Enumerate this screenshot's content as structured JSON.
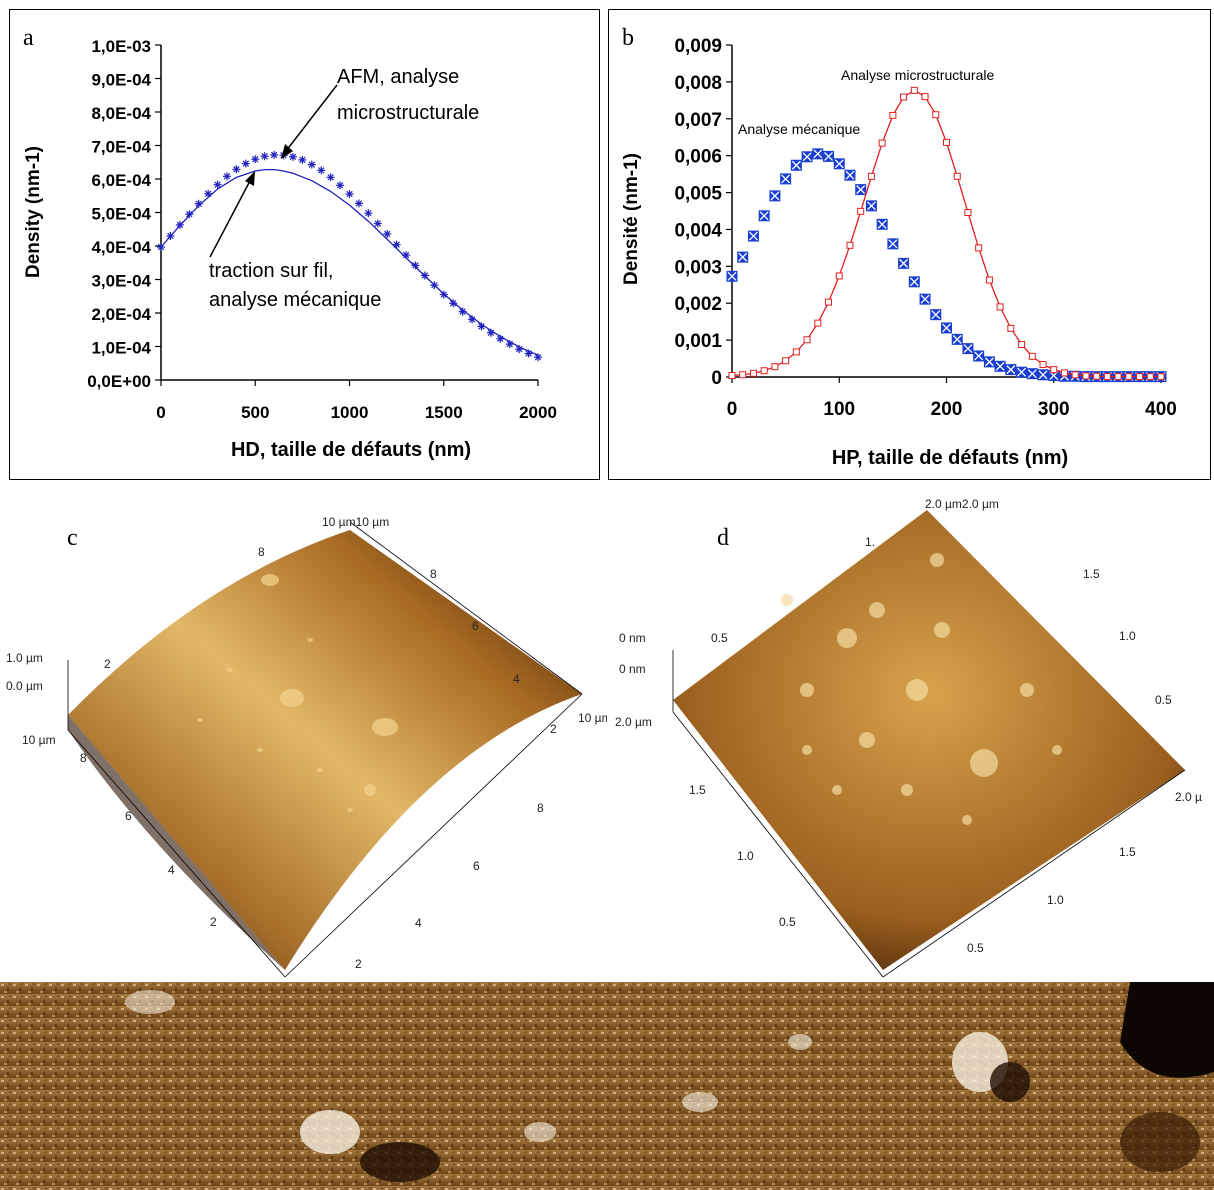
{
  "chart_data": [
    {
      "panel": "a",
      "type": "scatter",
      "xlabel": "HD,  taille de défauts (nm)",
      "ylabel": "Density (nm-1)",
      "xlim": [
        0,
        2000
      ],
      "ylim": [
        0,
        0.001
      ],
      "x_ticks": [
        "0",
        "500",
        "1000",
        "1500",
        "2000"
      ],
      "y_ticks": [
        "0,0E+00",
        "1,0E-04",
        "2,0E-04",
        "3,0E-04",
        "4,0E-04",
        "5,0E-04",
        "6,0E-04",
        "7,0E-04",
        "8,0E-04",
        "9,0E-04",
        "1,0E-03"
      ],
      "grid": false,
      "annotations": [
        {
          "lines": [
            "AFM, analyse",
            "microstructurale"
          ]
        },
        {
          "lines": [
            "traction sur fil,",
            "analyse mécanique"
          ]
        }
      ],
      "series": [
        {
          "marker": "asterisk",
          "color": "#2020c0",
          "x": [
            0,
            50,
            100,
            150,
            200,
            250,
            300,
            350,
            400,
            450,
            500,
            550,
            600,
            650,
            700,
            750,
            800,
            850,
            900,
            950,
            1000,
            1050,
            1100,
            1150,
            1200,
            1250,
            1300,
            1350,
            1400,
            1450,
            1500,
            1550,
            1600,
            1650,
            1700,
            1750,
            1800,
            1850,
            1900,
            1950,
            2000
          ],
          "y": [
            0.000397,
            0.00043,
            0.000463,
            0.000495,
            0.000526,
            0.000556,
            0.000583,
            0.000608,
            0.000629,
            0.000646,
            0.000659,
            0.000668,
            0.000672,
            0.000671,
            0.000666,
            0.000657,
            0.000643,
            0.000626,
            0.000605,
            0.000581,
            0.000555,
            0.000527,
            0.000498,
            0.000467,
            0.000436,
            0.000404,
            0.000373,
            0.000342,
            0.000312,
            0.000283,
            0.000255,
            0.000229,
            0.000204,
            0.000181,
            0.00016,
            0.000141,
            0.000123,
            0.000107,
            9.2e-05,
            7.9e-05,
            6.8e-05
          ]
        },
        {
          "marker": "line",
          "color": "#2020c0",
          "x": [
            0,
            100,
            200,
            300,
            400,
            500,
            550,
            600,
            650,
            700,
            800,
            900,
            1000,
            1100,
            1200,
            1300,
            1400,
            1500,
            1600,
            1700,
            1800,
            1900,
            2000
          ],
          "y": [
            0.000397,
            0.000461,
            0.00052,
            0.00057,
            0.000605,
            0.000624,
            0.000628,
            0.000628,
            0.000624,
            0.000617,
            0.000595,
            0.000563,
            0.000522,
            0.000474,
            0.00042,
            0.000365,
            0.00031,
            0.000257,
            0.000209,
            0.000166,
            0.00013,
            9.9e-05,
            7.4e-05
          ]
        }
      ]
    },
    {
      "panel": "b",
      "type": "scatter",
      "xlabel": "HP, taille de défauts (nm)",
      "ylabel": "Densité (nm-1)",
      "xlim": [
        0,
        400
      ],
      "ylim": [
        0,
        0.009
      ],
      "x_ticks": [
        "0",
        "100",
        "200",
        "300",
        "400"
      ],
      "y_ticks": [
        "0",
        "0,001",
        "0,002",
        "0,003",
        "0,004",
        "0,005",
        "0,006",
        "0,007",
        "0,008",
        "0,009"
      ],
      "grid": false,
      "series": [
        {
          "name": "Analyse mécanique",
          "marker": "square-x",
          "color": "#1a3fd0",
          "x": [
            0,
            10,
            20,
            30,
            40,
            50,
            60,
            70,
            80,
            90,
            100,
            110,
            120,
            130,
            140,
            150,
            160,
            170,
            180,
            190,
            200,
            210,
            220,
            230,
            240,
            250,
            260,
            270,
            280,
            290,
            300,
            310,
            320,
            330,
            340,
            350,
            360,
            370,
            380,
            390,
            400
          ],
          "y": [
            0.00273,
            0.00325,
            0.00382,
            0.00437,
            0.00491,
            0.00537,
            0.00574,
            0.00597,
            0.00605,
            0.00598,
            0.00578,
            0.00547,
            0.00508,
            0.00464,
            0.00414,
            0.00361,
            0.00308,
            0.00258,
            0.00211,
            0.00169,
            0.00133,
            0.00102,
            0.00077,
            0.00057,
            0.00041,
            0.00029,
            0.0002,
            0.00013,
            9e-05,
            6e-05,
            4e-05,
            2e-05,
            2e-05,
            1e-05,
            1e-05,
            1e-05,
            1e-05,
            1e-05,
            1e-05,
            1e-05,
            1e-05
          ]
        },
        {
          "name": "Analyse microstructurale",
          "marker": "square-line",
          "color": "#e02020",
          "x": [
            0,
            10,
            20,
            30,
            40,
            50,
            60,
            70,
            80,
            90,
            100,
            110,
            120,
            130,
            140,
            150,
            160,
            170,
            180,
            190,
            200,
            210,
            220,
            230,
            240,
            250,
            260,
            270,
            280,
            290,
            300,
            310,
            320,
            330,
            340,
            350,
            360,
            370,
            380,
            390,
            400
          ],
          "y": [
            4e-05,
            6e-05,
            0.0001,
            0.00017,
            0.00028,
            0.00044,
            0.00068,
            0.00101,
            0.00146,
            0.00203,
            0.00274,
            0.00357,
            0.00449,
            0.00544,
            0.00634,
            0.00709,
            0.00759,
            0.00777,
            0.0076,
            0.00711,
            0.00636,
            0.00544,
            0.00446,
            0.0035,
            0.00263,
            0.0019,
            0.00132,
            0.00088,
            0.00056,
            0.00034,
            0.0002,
            0.00011,
            6e-05,
            3e-05,
            2e-05,
            1e-05,
            1e-05,
            1e-05,
            1e-05,
            1e-05,
            1e-05
          ]
        }
      ]
    }
  ],
  "panel_letters": {
    "a": "a",
    "b": "b",
    "c": "c",
    "d": "d"
  },
  "afm_c": {
    "labels": {
      "top_corner": "10 µm10 µm",
      "z_top": "1.0 µm",
      "z_bottom": "0.0 µm",
      "left_corner": "10 µm",
      "right_corner": "10 µm",
      "right_axis": [
        "8",
        "6",
        "4",
        "2"
      ],
      "left_axis": [
        "8",
        "6",
        "4",
        "2"
      ],
      "front_axis": [
        "8",
        "6",
        "4",
        "2"
      ],
      "top_left": [
        "8",
        "2"
      ]
    }
  },
  "afm_d": {
    "labels": {
      "top_corner": "2.0 µm2.0 µm",
      "z_top": "0 nm",
      "z_bottom": "0 nm",
      "left_corner": "2.0 µm",
      "right_corner": "2.0 µ",
      "right_axis": [
        "1.5",
        "1.0",
        "0.5"
      ],
      "left_axis": [
        "1.5",
        "1.0",
        "0.5"
      ],
      "front_axis": [
        "1.5",
        "1.0",
        "0.5"
      ],
      "top_axis": [
        "0.5",
        "1."
      ]
    }
  }
}
